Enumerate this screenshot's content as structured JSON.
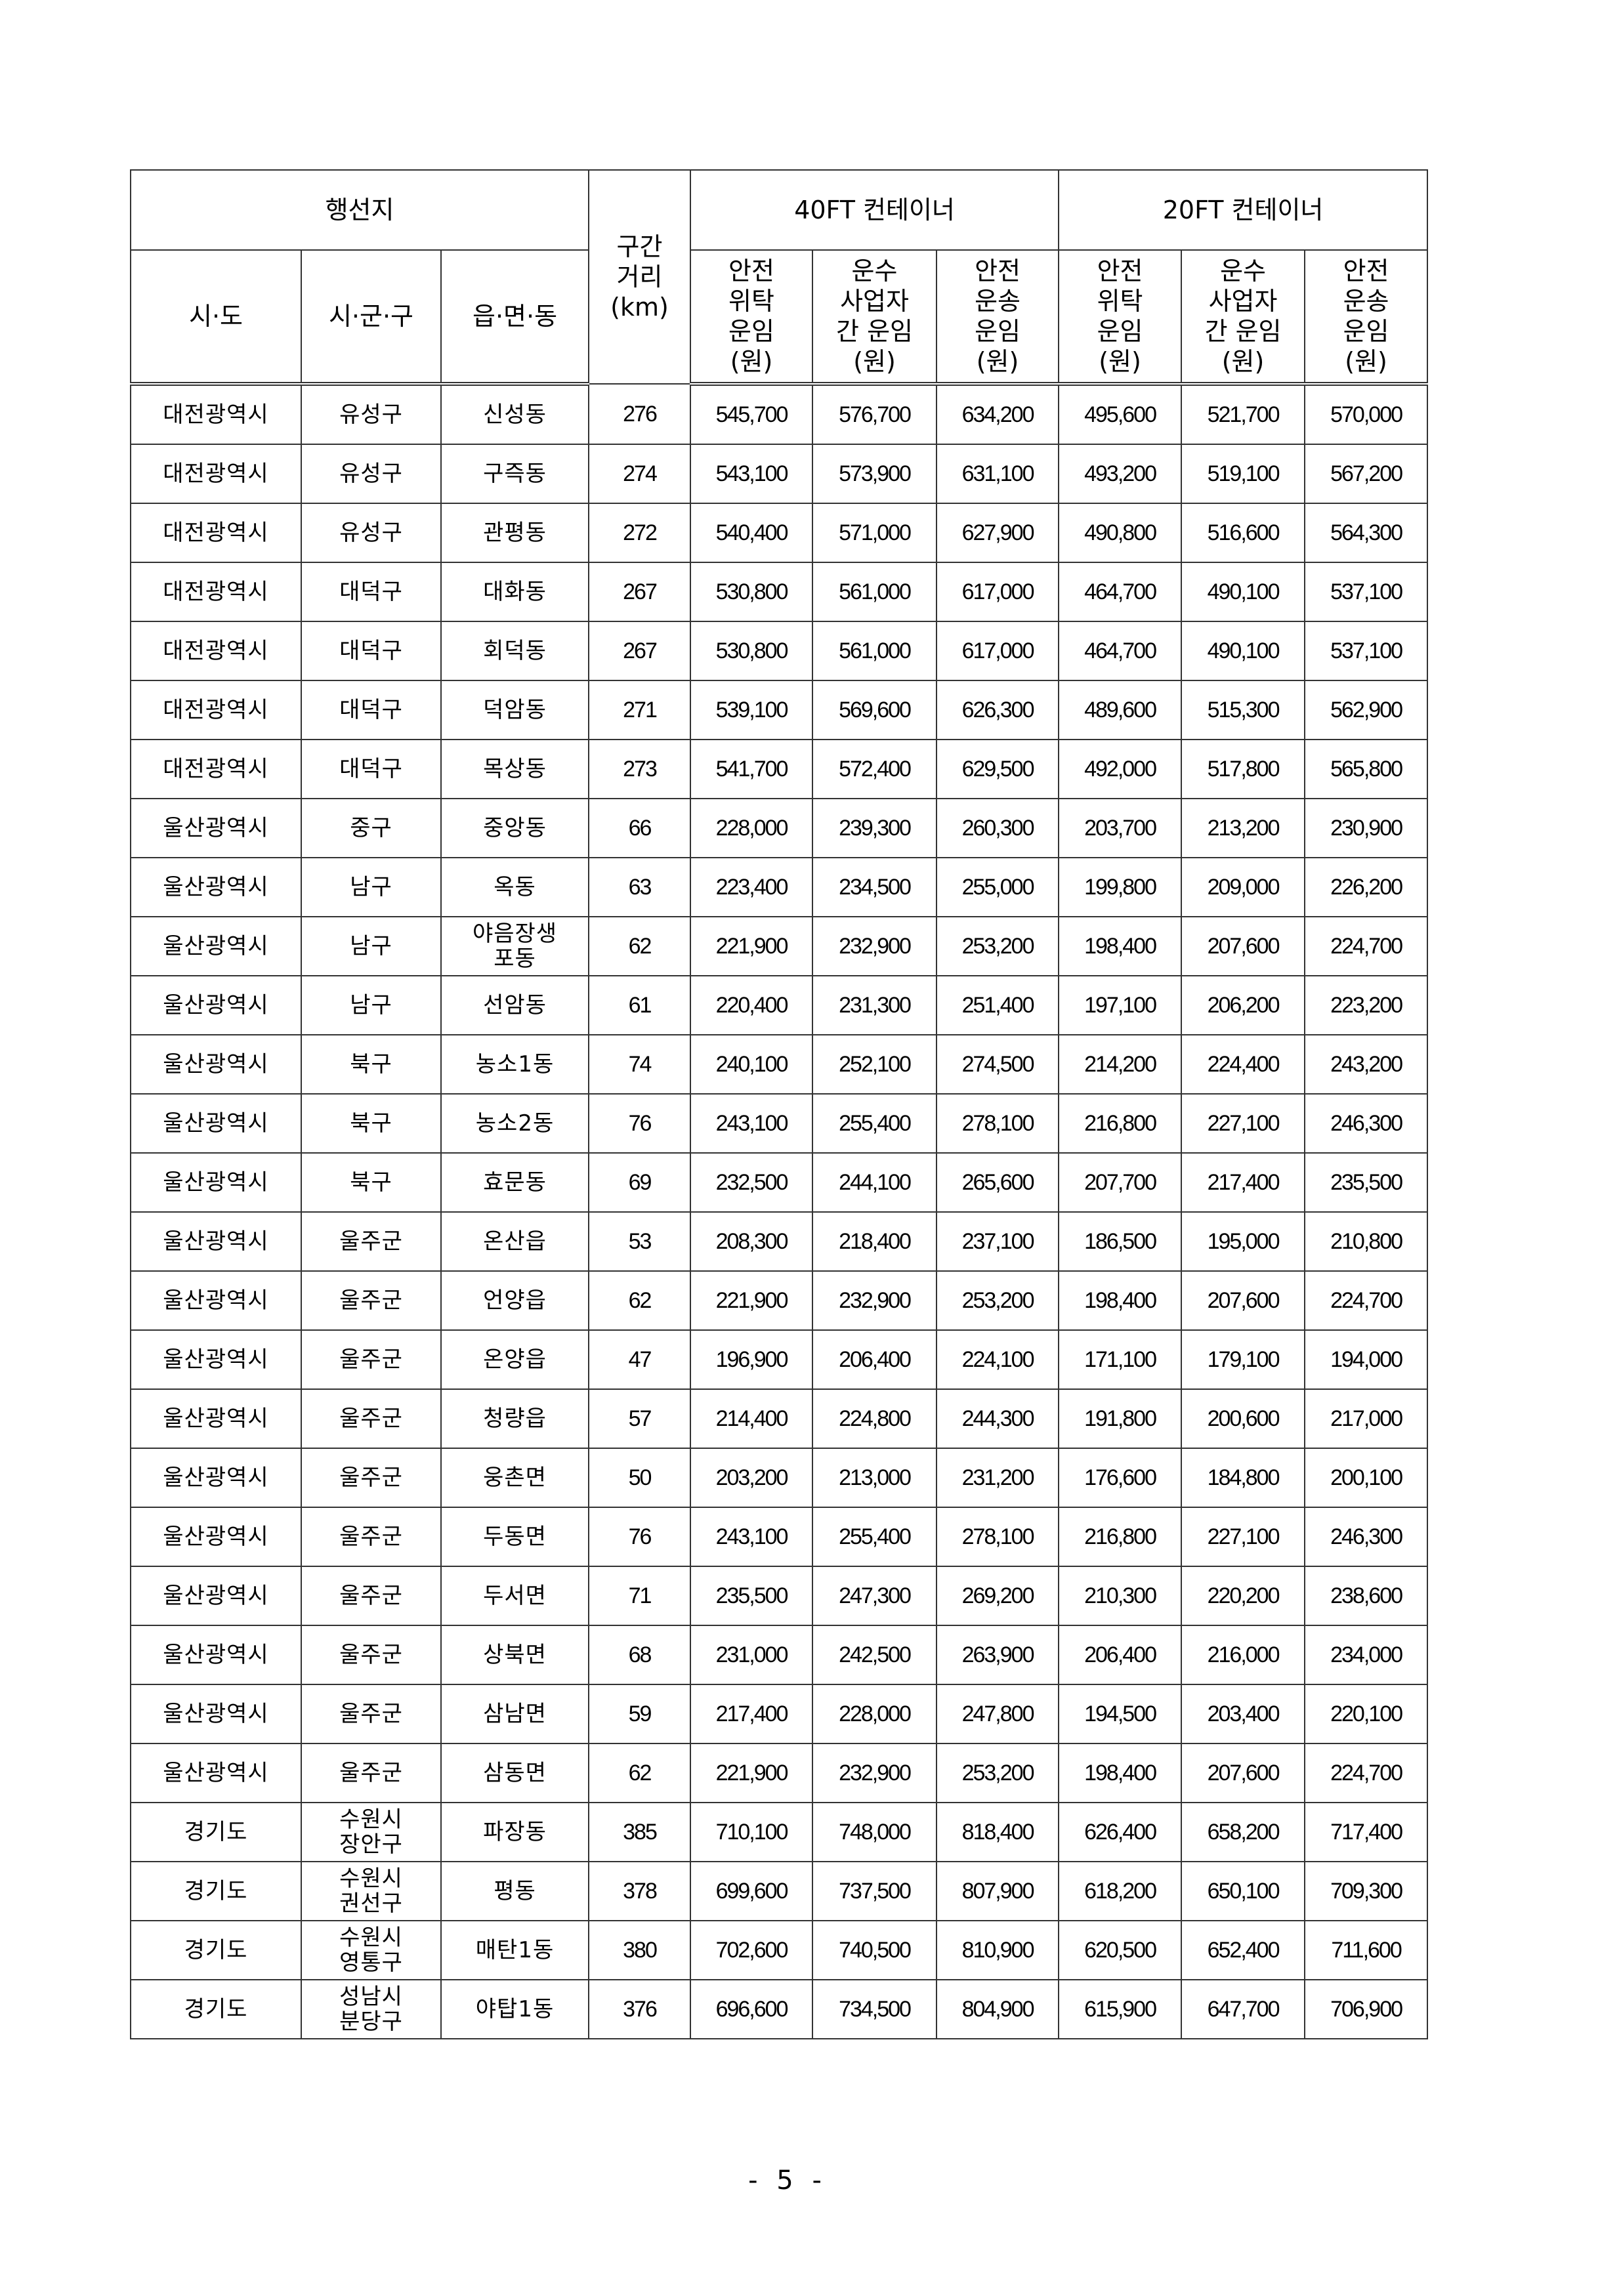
{
  "table": {
    "header": {
      "destination": "행선지",
      "distance": "구간\n거리\n(km)",
      "group_40ft": "40FT 컨테이너",
      "group_20ft": "20FT 컨테이너",
      "sido": "시·도",
      "sigungu": "시·군·구",
      "eupmyeondong": "읍·면·동",
      "col_safe_consign": "안전\n위탁\n운임\n(원)",
      "col_carrier": "운수\n사업자\n간 운임\n(원)",
      "col_safe_transport": "안전\n운송\n운임\n(원)"
    },
    "rows": [
      [
        "대전광역시",
        "유성구",
        "신성동",
        "276",
        "545,700",
        "576,700",
        "634,200",
        "495,600",
        "521,700",
        "570,000"
      ],
      [
        "대전광역시",
        "유성구",
        "구즉동",
        "274",
        "543,100",
        "573,900",
        "631,100",
        "493,200",
        "519,100",
        "567,200"
      ],
      [
        "대전광역시",
        "유성구",
        "관평동",
        "272",
        "540,400",
        "571,000",
        "627,900",
        "490,800",
        "516,600",
        "564,300"
      ],
      [
        "대전광역시",
        "대덕구",
        "대화동",
        "267",
        "530,800",
        "561,000",
        "617,000",
        "464,700",
        "490,100",
        "537,100"
      ],
      [
        "대전광역시",
        "대덕구",
        "회덕동",
        "267",
        "530,800",
        "561,000",
        "617,000",
        "464,700",
        "490,100",
        "537,100"
      ],
      [
        "대전광역시",
        "대덕구",
        "덕암동",
        "271",
        "539,100",
        "569,600",
        "626,300",
        "489,600",
        "515,300",
        "562,900"
      ],
      [
        "대전광역시",
        "대덕구",
        "목상동",
        "273",
        "541,700",
        "572,400",
        "629,500",
        "492,000",
        "517,800",
        "565,800"
      ],
      [
        "울산광역시",
        "중구",
        "중앙동",
        "66",
        "228,000",
        "239,300",
        "260,300",
        "203,700",
        "213,200",
        "230,900"
      ],
      [
        "울산광역시",
        "남구",
        "옥동",
        "63",
        "223,400",
        "234,500",
        "255,000",
        "199,800",
        "209,000",
        "226,200"
      ],
      [
        "울산광역시",
        "남구",
        "야음장생\n포동",
        "62",
        "221,900",
        "232,900",
        "253,200",
        "198,400",
        "207,600",
        "224,700"
      ],
      [
        "울산광역시",
        "남구",
        "선암동",
        "61",
        "220,400",
        "231,300",
        "251,400",
        "197,100",
        "206,200",
        "223,200"
      ],
      [
        "울산광역시",
        "북구",
        "농소1동",
        "74",
        "240,100",
        "252,100",
        "274,500",
        "214,200",
        "224,400",
        "243,200"
      ],
      [
        "울산광역시",
        "북구",
        "농소2동",
        "76",
        "243,100",
        "255,400",
        "278,100",
        "216,800",
        "227,100",
        "246,300"
      ],
      [
        "울산광역시",
        "북구",
        "효문동",
        "69",
        "232,500",
        "244,100",
        "265,600",
        "207,700",
        "217,400",
        "235,500"
      ],
      [
        "울산광역시",
        "울주군",
        "온산읍",
        "53",
        "208,300",
        "218,400",
        "237,100",
        "186,500",
        "195,000",
        "210,800"
      ],
      [
        "울산광역시",
        "울주군",
        "언양읍",
        "62",
        "221,900",
        "232,900",
        "253,200",
        "198,400",
        "207,600",
        "224,700"
      ],
      [
        "울산광역시",
        "울주군",
        "온양읍",
        "47",
        "196,900",
        "206,400",
        "224,100",
        "171,100",
        "179,100",
        "194,000"
      ],
      [
        "울산광역시",
        "울주군",
        "청량읍",
        "57",
        "214,400",
        "224,800",
        "244,300",
        "191,800",
        "200,600",
        "217,000"
      ],
      [
        "울산광역시",
        "울주군",
        "웅촌면",
        "50",
        "203,200",
        "213,000",
        "231,200",
        "176,600",
        "184,800",
        "200,100"
      ],
      [
        "울산광역시",
        "울주군",
        "두동면",
        "76",
        "243,100",
        "255,400",
        "278,100",
        "216,800",
        "227,100",
        "246,300"
      ],
      [
        "울산광역시",
        "울주군",
        "두서면",
        "71",
        "235,500",
        "247,300",
        "269,200",
        "210,300",
        "220,200",
        "238,600"
      ],
      [
        "울산광역시",
        "울주군",
        "상북면",
        "68",
        "231,000",
        "242,500",
        "263,900",
        "206,400",
        "216,000",
        "234,000"
      ],
      [
        "울산광역시",
        "울주군",
        "삼남면",
        "59",
        "217,400",
        "228,000",
        "247,800",
        "194,500",
        "203,400",
        "220,100"
      ],
      [
        "울산광역시",
        "울주군",
        "삼동면",
        "62",
        "221,900",
        "232,900",
        "253,200",
        "198,400",
        "207,600",
        "224,700"
      ],
      [
        "경기도",
        "수원시\n장안구",
        "파장동",
        "385",
        "710,100",
        "748,000",
        "818,400",
        "626,400",
        "658,200",
        "717,400"
      ],
      [
        "경기도",
        "수원시\n권선구",
        "평동",
        "378",
        "699,600",
        "737,500",
        "807,900",
        "618,200",
        "650,100",
        "709,300"
      ],
      [
        "경기도",
        "수원시\n영통구",
        "매탄1동",
        "380",
        "702,600",
        "740,500",
        "810,900",
        "620,500",
        "652,400",
        "711,600"
      ],
      [
        "경기도",
        "성남시\n분당구",
        "야탑1동",
        "376",
        "696,600",
        "734,500",
        "804,900",
        "615,900",
        "647,700",
        "706,900"
      ]
    ]
  },
  "footer": {
    "page_number": "- 5 -"
  }
}
